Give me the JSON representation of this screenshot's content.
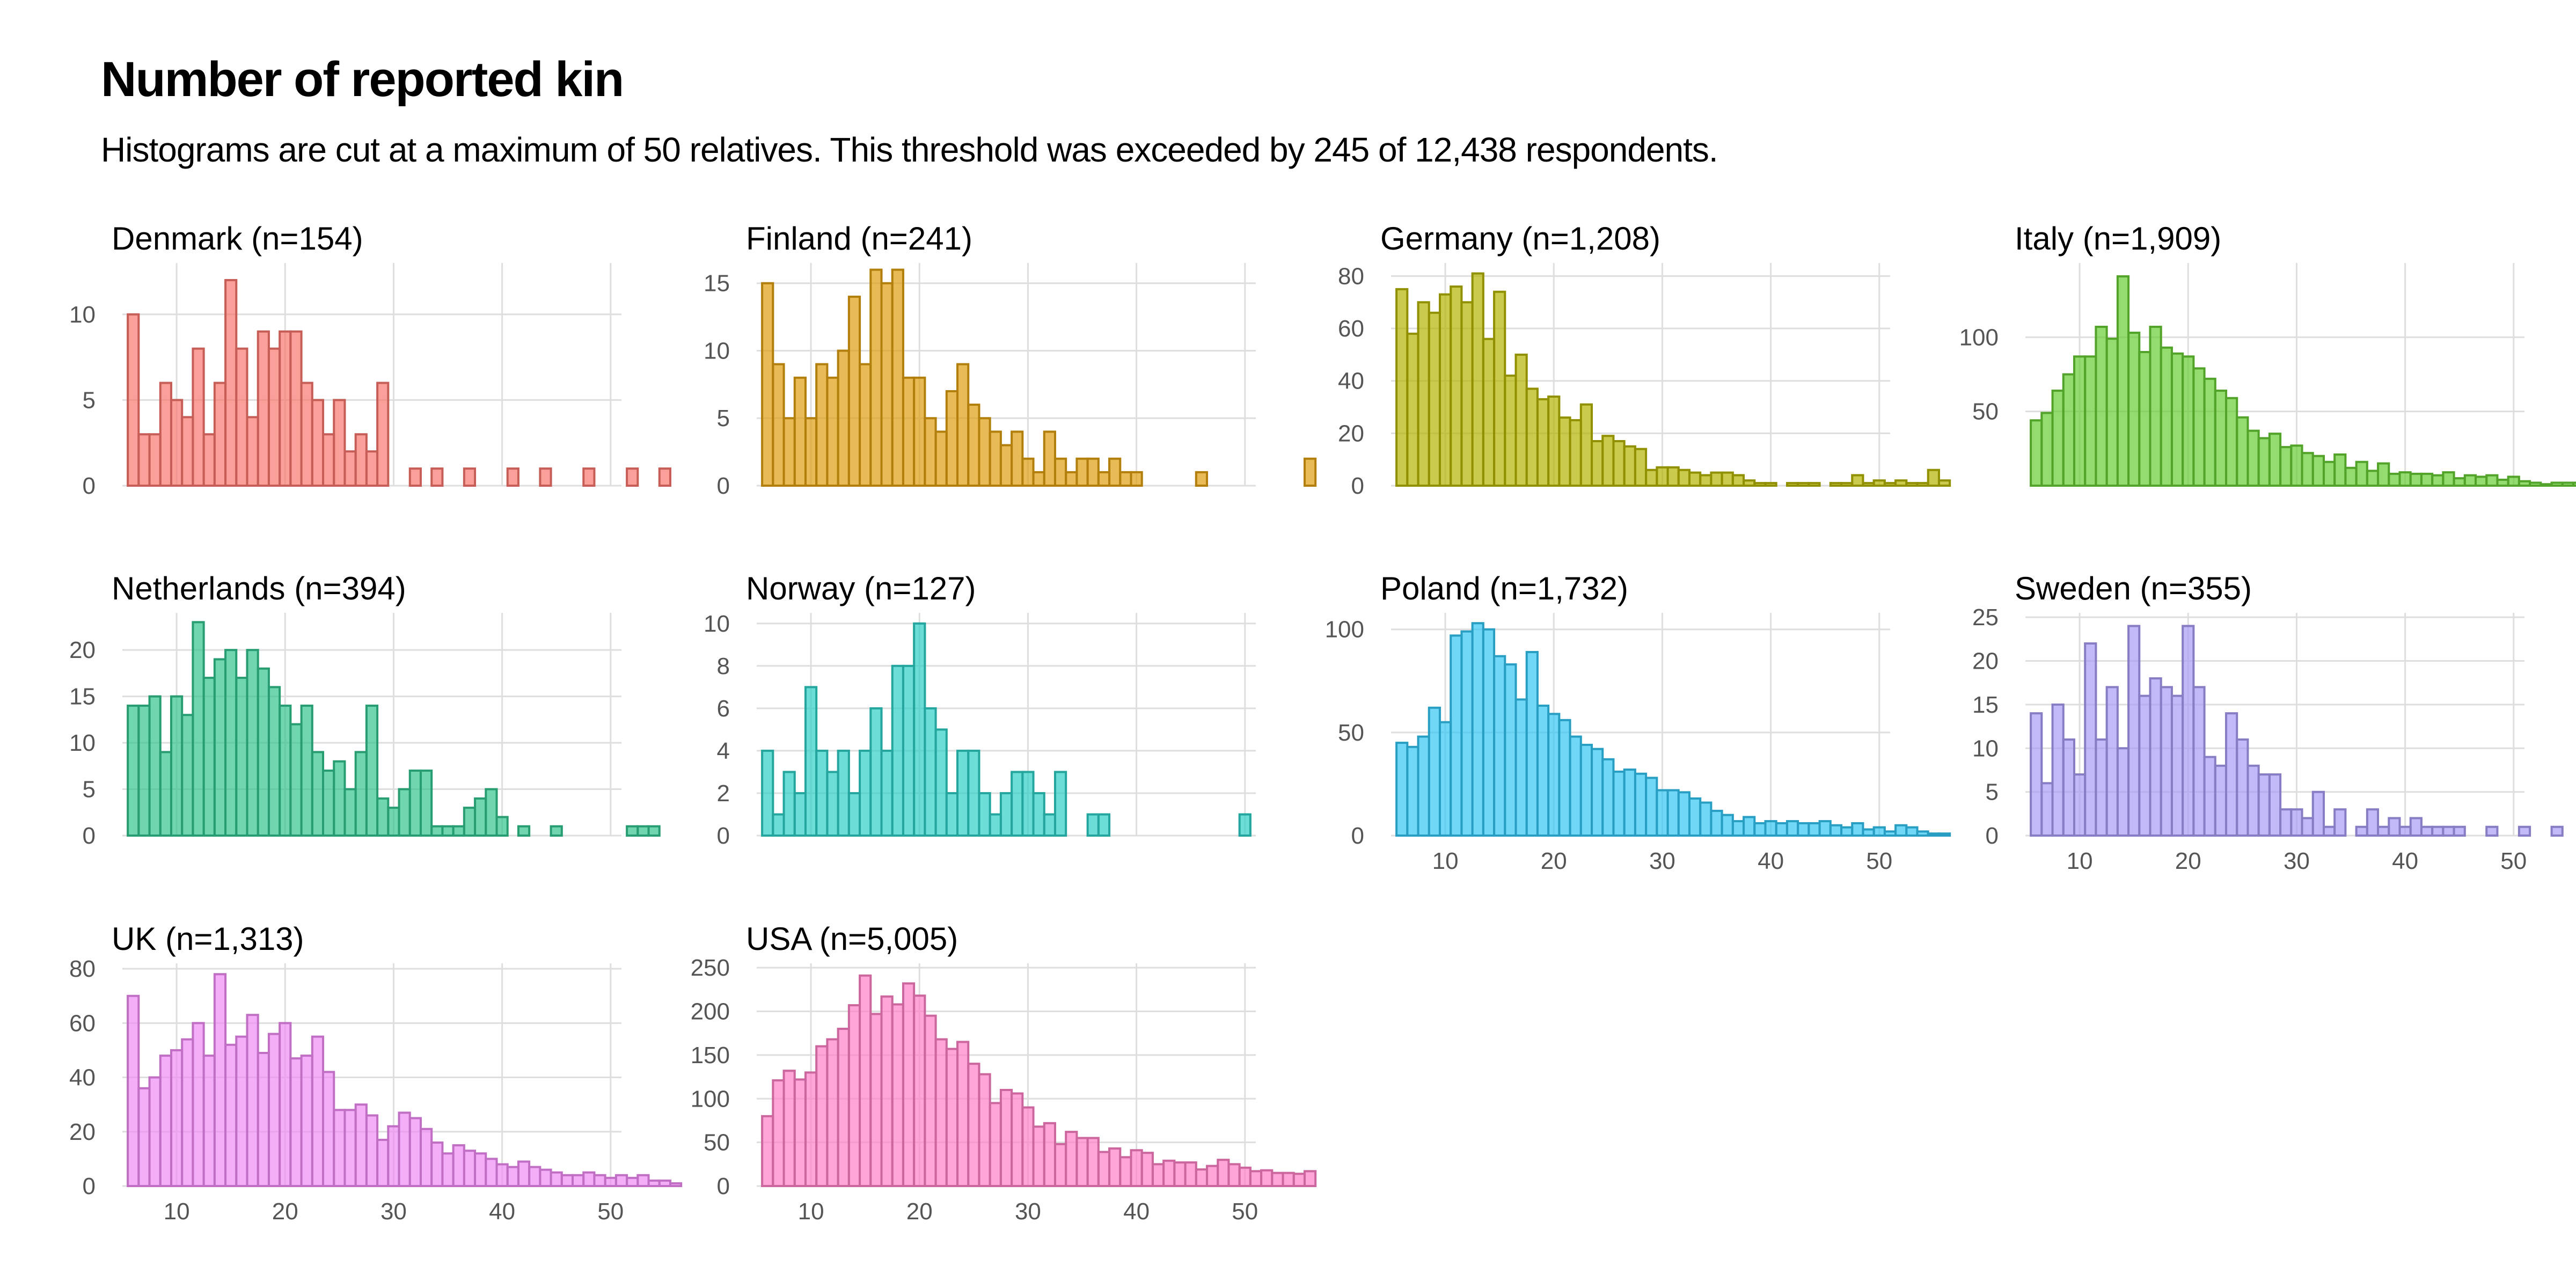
{
  "title": "Number of reported kin",
  "subtitle": "Histograms are cut at a maximum of 50 relatives. This threshold was exceeded by 245 of 12,438 respondents.",
  "chart_data": {
    "type": "bar",
    "layout": "facet grid, 4 columns, 3 rows",
    "x_range": [
      5,
      51
    ],
    "x_ticks": [
      10,
      20,
      30,
      40,
      50
    ],
    "grid": true,
    "panels": [
      {
        "title": "Denmark (n=154)",
        "fill": "#F8766D",
        "ylim": [
          0,
          13
        ],
        "yticks": [
          0,
          5,
          10
        ],
        "show_x_ticks": false,
        "values": [
          10,
          3,
          3,
          6,
          5,
          4,
          8,
          3,
          6,
          12,
          8,
          4,
          9,
          8,
          9,
          9,
          6,
          5,
          3,
          5,
          2,
          3,
          2,
          6,
          0,
          0,
          1,
          0,
          1,
          0,
          0,
          1,
          0,
          0,
          0,
          1,
          0,
          0,
          1,
          0,
          0,
          0,
          1,
          0,
          0,
          0,
          1,
          0,
          0,
          1,
          0
        ]
      },
      {
        "title": "Finland (n=241)",
        "fill": "#DE9E0F",
        "ylim": [
          0,
          16.5
        ],
        "yticks": [
          0,
          5,
          10,
          15
        ],
        "show_x_ticks": false,
        "values": [
          15,
          9,
          5,
          8,
          5,
          9,
          8,
          10,
          14,
          9,
          16,
          15,
          16,
          8,
          8,
          5,
          4,
          7,
          9,
          6,
          5,
          4,
          3,
          4,
          2,
          1,
          4,
          2,
          1,
          2,
          2,
          1,
          2,
          1,
          1,
          0,
          0,
          0,
          0,
          0,
          1,
          0,
          0,
          0,
          0,
          0,
          0,
          0,
          0,
          0,
          2
        ]
      },
      {
        "title": "Germany (n=1,208)",
        "fill": "#B4B400",
        "ylim": [
          0,
          85
        ],
        "yticks": [
          0,
          20,
          40,
          60,
          80
        ],
        "show_x_ticks": false,
        "values": [
          75,
          58,
          70,
          66,
          73,
          76,
          70,
          81,
          56,
          74,
          42,
          50,
          37,
          33,
          34,
          26,
          25,
          31,
          17,
          19,
          17,
          15,
          14,
          6,
          7,
          7,
          6,
          5,
          4,
          5,
          5,
          4,
          2,
          1,
          1,
          0,
          1,
          1,
          1,
          0,
          1,
          1,
          4,
          1,
          2,
          1,
          2,
          1,
          1,
          6,
          2
        ]
      },
      {
        "title": "Italy (n=1,909)",
        "fill": "#66CC33",
        "ylim": [
          0,
          150
        ],
        "yticks": [
          50,
          100
        ],
        "show_x_ticks": false,
        "values": [
          44,
          49,
          64,
          75,
          87,
          87,
          107,
          99,
          141,
          103,
          90,
          107,
          93,
          89,
          87,
          79,
          72,
          64,
          59,
          46,
          37,
          32,
          35,
          26,
          27,
          22,
          20,
          16,
          21,
          12,
          16,
          10,
          15,
          8,
          9,
          8,
          8,
          7,
          9,
          5,
          7,
          6,
          7,
          4,
          6,
          3,
          2,
          1,
          2,
          2,
          2
        ]
      },
      {
        "title": "Netherlands (n=394)",
        "fill": "#33C48F",
        "ylim": [
          0,
          24
        ],
        "yticks": [
          0,
          5,
          10,
          15,
          20
        ],
        "show_x_ticks": false,
        "values": [
          14,
          14,
          15,
          9,
          15,
          13,
          23,
          17,
          19,
          20,
          17,
          20,
          18,
          16,
          14,
          12,
          14,
          9,
          7,
          8,
          5,
          9,
          14,
          4,
          3,
          5,
          7,
          7,
          1,
          1,
          1,
          3,
          4,
          5,
          2,
          0,
          1,
          0,
          0,
          1,
          0,
          0,
          0,
          0,
          0,
          0,
          1,
          1,
          1,
          0,
          0
        ]
      },
      {
        "title": "Norway (n=127)",
        "fill": "#2DCEC6",
        "ylim": [
          0,
          10.5
        ],
        "yticks": [
          0,
          2,
          4,
          6,
          8,
          10
        ],
        "show_x_ticks": false,
        "values": [
          4,
          1,
          3,
          2,
          7,
          4,
          3,
          4,
          2,
          4,
          6,
          4,
          8,
          8,
          10,
          6,
          5,
          2,
          4,
          4,
          2,
          1,
          2,
          3,
          3,
          2,
          1,
          3,
          0,
          0,
          1,
          1,
          0,
          0,
          0,
          0,
          0,
          0,
          0,
          0,
          0,
          0,
          0,
          0,
          1,
          0,
          0,
          0,
          0,
          0,
          0
        ]
      },
      {
        "title": "Poland (n=1,732)",
        "fill": "#33C6F4",
        "ylim": [
          0,
          108
        ],
        "yticks": [
          0,
          50,
          100
        ],
        "show_x_ticks": true,
        "values": [
          45,
          43,
          48,
          62,
          55,
          97,
          99,
          103,
          100,
          87,
          83,
          66,
          89,
          63,
          59,
          56,
          48,
          44,
          42,
          37,
          31,
          32,
          30,
          28,
          22,
          22,
          21,
          18,
          16,
          12,
          10,
          7,
          9,
          6,
          7,
          6,
          7,
          6,
          6,
          7,
          5,
          4,
          6,
          3,
          4,
          2,
          5,
          4,
          2,
          1,
          1
        ]
      },
      {
        "title": "Sweden (n=355)",
        "fill": "#A89CF5",
        "ylim": [
          0,
          25.5
        ],
        "yticks": [
          0,
          5,
          10,
          15,
          20,
          25
        ],
        "show_x_ticks": true,
        "values": [
          14,
          6,
          15,
          11,
          7,
          22,
          11,
          17,
          10,
          24,
          16,
          18,
          17,
          16,
          24,
          17,
          9,
          8,
          14,
          11,
          8,
          7,
          7,
          3,
          3,
          2,
          5,
          1,
          3,
          0,
          1,
          3,
          1,
          2,
          1,
          2,
          1,
          1,
          1,
          1,
          0,
          0,
          1,
          0,
          0,
          1,
          0,
          0,
          1,
          0,
          0
        ]
      },
      {
        "title": "UK (n=1,313)",
        "fill": "#F08BF5",
        "ylim": [
          0,
          82
        ],
        "yticks": [
          0,
          20,
          40,
          60,
          80
        ],
        "show_x_ticks": true,
        "values": [
          70,
          36,
          40,
          48,
          50,
          54,
          60,
          48,
          78,
          52,
          55,
          63,
          49,
          56,
          60,
          47,
          48,
          55,
          42,
          28,
          28,
          30,
          26,
          17,
          22,
          27,
          25,
          21,
          16,
          12,
          15,
          13,
          12,
          10,
          8,
          7,
          9,
          7,
          6,
          5,
          4,
          4,
          5,
          4,
          3,
          4,
          3,
          4,
          2,
          2,
          1
        ]
      },
      {
        "title": "USA (n=5,005)",
        "fill": "#FF7FC6",
        "ylim": [
          0,
          255
        ],
        "yticks": [
          0,
          50,
          100,
          150,
          200,
          250
        ],
        "show_x_ticks": true,
        "values": [
          80,
          121,
          132,
          122,
          130,
          160,
          168,
          180,
          207,
          241,
          197,
          217,
          208,
          232,
          218,
          195,
          168,
          157,
          165,
          140,
          128,
          95,
          110,
          106,
          90,
          68,
          72,
          48,
          62,
          55,
          55,
          39,
          43,
          33,
          41,
          38,
          25,
          29,
          27,
          27,
          19,
          23,
          30,
          25,
          21,
          17,
          18,
          15,
          15,
          14,
          17
        ]
      }
    ]
  }
}
